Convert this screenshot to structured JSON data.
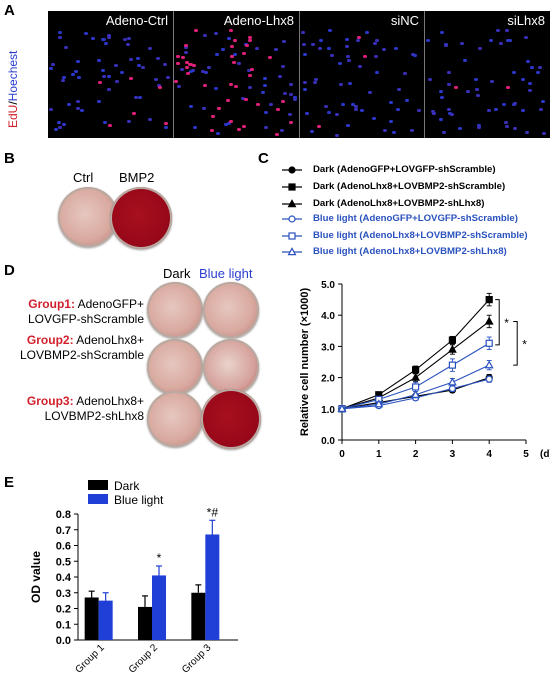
{
  "panel_labels": {
    "a": "A",
    "b": "B",
    "c": "C",
    "d": "D",
    "e": "E"
  },
  "panel_a": {
    "ylabel_red": "EdU",
    "ylabel_sep": "/",
    "ylabel_blue": "Hoechest",
    "images": [
      "Adeno-Ctrl",
      "Adeno-Lhx8",
      "siNC",
      "siLhx8"
    ]
  },
  "panel_b": {
    "labels": [
      "Ctrl",
      "BMP2"
    ]
  },
  "panel_d": {
    "col_headers": [
      "Dark",
      "Blue light"
    ],
    "groups": [
      {
        "name": "Group1:",
        "line1": " AdenoGFP+",
        "line2": "LOVGFP-shScramble"
      },
      {
        "name": "Group2:",
        "line1": " AdenoLhx8+",
        "line2": "LOVBMP2-shScramble"
      },
      {
        "name": "Group3:",
        "line1": " AdenoLhx8+",
        "line2": "LOVBMP2-shLhx8"
      }
    ]
  },
  "colors": {
    "dark": "#000000",
    "blue": "#2a52be",
    "group_red": "#d11f2b"
  },
  "chart_data": [
    {
      "panel": "C",
      "type": "line",
      "xlabel": "(d)",
      "ylabel": "Relative cell number (×1000)",
      "xlim": [
        0,
        5
      ],
      "ylim": [
        0,
        5
      ],
      "xticks": [
        "0",
        "1",
        "2",
        "3",
        "4",
        "5"
      ],
      "yticks": [
        "0.0",
        "1.0",
        "2.0",
        "3.0",
        "4.0",
        "5.0"
      ],
      "x": [
        0,
        1,
        2,
        3,
        4
      ],
      "series": [
        {
          "name": "Dark (AdenoGFP+LOVGFP-shScramble)",
          "marker": "circle",
          "filled": true,
          "color": "#000000",
          "values": [
            1.0,
            1.2,
            1.4,
            1.6,
            2.0
          ],
          "err": [
            0.05,
            0.06,
            0.08,
            0.08,
            0.1
          ]
        },
        {
          "name": "Dark (AdenoLhx8+LOVBMP2-shScramble)",
          "marker": "square",
          "filled": true,
          "color": "#000000",
          "values": [
            1.0,
            1.45,
            2.25,
            3.2,
            4.5
          ],
          "err": [
            0.05,
            0.08,
            0.12,
            0.12,
            0.2
          ]
        },
        {
          "name": "Dark (AdenoLhx8+LOVBMP2-shLhx8)",
          "marker": "triangle",
          "filled": true,
          "color": "#000000",
          "values": [
            1.0,
            1.35,
            2.0,
            2.9,
            3.8
          ],
          "err": [
            0.05,
            0.08,
            0.12,
            0.15,
            0.2
          ]
        },
        {
          "name": "Blue light (AdenoGFP+LOVGFP-shScramble)",
          "marker": "circle",
          "filled": false,
          "color": "#2a52be",
          "values": [
            1.0,
            1.1,
            1.35,
            1.65,
            1.95
          ],
          "err": [
            0.05,
            0.06,
            0.08,
            0.1,
            0.1
          ]
        },
        {
          "name": "Blue light (AdenoLhx8+LOVBMP2-shScramble)",
          "marker": "square",
          "filled": false,
          "color": "#2a52be",
          "values": [
            1.0,
            1.3,
            1.7,
            2.4,
            3.1
          ],
          "err": [
            0.05,
            0.1,
            0.15,
            0.2,
            0.2
          ]
        },
        {
          "name": "Blue light (AdenoLhx8+LOVBMP2-shLhx8)",
          "marker": "triangle",
          "filled": false,
          "color": "#2a52be",
          "values": [
            1.0,
            1.15,
            1.45,
            1.85,
            2.4
          ],
          "err": [
            0.05,
            0.08,
            0.1,
            0.12,
            0.15
          ]
        }
      ],
      "annotations": [
        "*",
        "*"
      ]
    },
    {
      "panel": "E",
      "type": "bar",
      "ylabel": "OD value",
      "ylim": [
        0,
        0.8
      ],
      "yticks": [
        "0.0",
        "0.1",
        "0.2",
        "0.3",
        "0.4",
        "0.5",
        "0.6",
        "0.7",
        "0.8"
      ],
      "categories": [
        "Group 1",
        "Group 2",
        "Group 3"
      ],
      "series": [
        {
          "name": "Dark",
          "color": "#000000",
          "values": [
            0.27,
            0.21,
            0.3
          ],
          "err": [
            0.04,
            0.07,
            0.05
          ]
        },
        {
          "name": "Blue light",
          "color": "#1f3fd6",
          "values": [
            0.25,
            0.41,
            0.67
          ],
          "err": [
            0.05,
            0.06,
            0.09
          ]
        }
      ],
      "annotations": [
        "",
        "*",
        "*#"
      ]
    }
  ]
}
